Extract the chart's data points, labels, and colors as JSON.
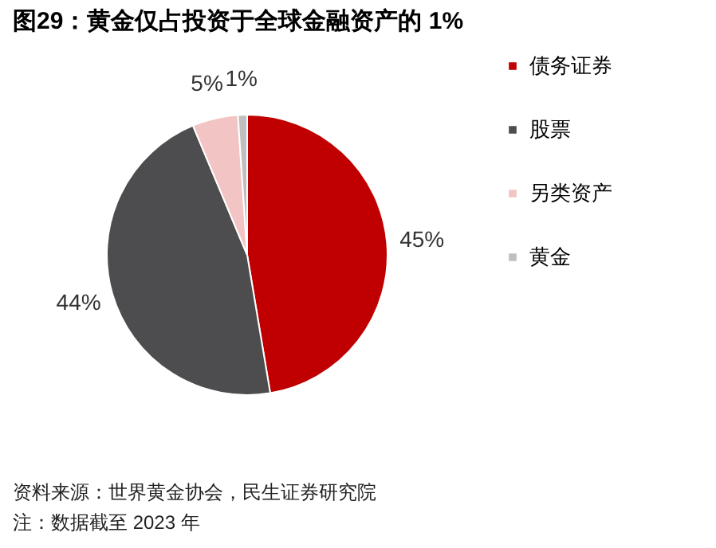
{
  "chart_data": {
    "type": "pie",
    "title": "图29：黄金仅占投资于全球金融资产的 1%",
    "categories": [
      "债务证券",
      "股票",
      "另类资产",
      "黄金"
    ],
    "values": [
      45,
      44,
      5,
      1
    ],
    "colors": [
      "#c00000",
      "#4d4d4f",
      "#f2c4c4",
      "#bfbfbf"
    ],
    "value_labels": [
      "45%",
      "44%",
      "5%",
      "1%"
    ],
    "legend": "right",
    "annotations": [
      "资料来源：世界黄金协会，民生证券研究院",
      "注：数据截至 2023 年"
    ]
  }
}
